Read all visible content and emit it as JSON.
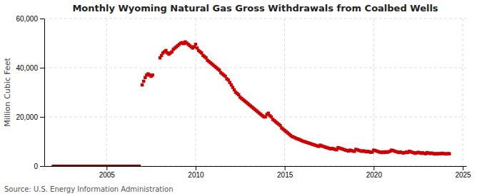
{
  "chart_data": {
    "type": "scatter",
    "title": "Monthly Wyoming Natural Gas Gross Withdrawals from Coalbed Wells",
    "ylabel": "Million Cubic Feet",
    "annotations": [
      "Source: U.S. Energy Information Administration"
    ],
    "xlim": [
      2001.5,
      2025.2
    ],
    "xticks": [
      2005,
      2010,
      2015,
      2020,
      2025
    ],
    "ylim": [
      0,
      60000
    ],
    "yticks": [
      0,
      {
        "value": 20000,
        "label": "20,000"
      },
      {
        "value": 40000,
        "label": "40,000"
      },
      {
        "value": 60000,
        "label": "60,000"
      }
    ],
    "grid": true,
    "series": [
      {
        "type": "line",
        "color": "#8B0000",
        "x": [
          2001.917,
          2006.917
        ],
        "values": [
          0,
          0
        ]
      },
      {
        "type": "scatter",
        "marker": "square",
        "color": "#CC0000",
        "x": [
          2007.0,
          2007.083,
          2007.167,
          2007.25,
          2007.333,
          2007.417,
          2007.5,
          2007.583,
          2008.0,
          2008.083,
          2008.167,
          2008.25,
          2008.333,
          2008.417,
          2008.5,
          2008.583,
          2008.667,
          2008.75,
          2008.833,
          2008.917,
          2009.0,
          2009.083,
          2009.167,
          2009.25,
          2009.333,
          2009.417,
          2009.5,
          2009.583,
          2009.667,
          2009.75,
          2009.833,
          2009.917,
          2010.0,
          2010.083,
          2010.167,
          2010.25,
          2010.333,
          2010.417,
          2010.5,
          2010.583,
          2010.667,
          2010.75,
          2010.833,
          2010.917,
          2011.0,
          2011.083,
          2011.167,
          2011.25,
          2011.333,
          2011.417,
          2011.5,
          2011.583,
          2011.667,
          2011.75,
          2011.833,
          2011.917,
          2012.0,
          2012.083,
          2012.167,
          2012.25,
          2012.333,
          2012.417,
          2012.5,
          2012.583,
          2012.667,
          2012.75,
          2012.833,
          2012.917,
          2013.0,
          2013.083,
          2013.167,
          2013.25,
          2013.333,
          2013.417,
          2013.5,
          2013.583,
          2013.667,
          2013.75,
          2013.833,
          2013.917,
          2014.0,
          2014.083,
          2014.167,
          2014.25,
          2014.333,
          2014.417,
          2014.5,
          2014.583,
          2014.667,
          2014.75,
          2014.833,
          2014.917,
          2015.0,
          2015.083,
          2015.167,
          2015.25,
          2015.333,
          2015.417,
          2015.5,
          2015.583,
          2015.667,
          2015.75,
          2015.833,
          2015.917,
          2016.0,
          2016.083,
          2016.167,
          2016.25,
          2016.333,
          2016.417,
          2016.5,
          2016.583,
          2016.667,
          2016.75,
          2016.833,
          2016.917,
          2017.0,
          2017.083,
          2017.167,
          2017.25,
          2017.333,
          2017.417,
          2017.5,
          2017.583,
          2017.667,
          2017.75,
          2017.833,
          2017.917,
          2018.0,
          2018.083,
          2018.167,
          2018.25,
          2018.333,
          2018.417,
          2018.5,
          2018.583,
          2018.667,
          2018.75,
          2018.833,
          2018.917,
          2019.0,
          2019.083,
          2019.167,
          2019.25,
          2019.333,
          2019.417,
          2019.5,
          2019.583,
          2019.667,
          2019.75,
          2019.833,
          2019.917,
          2020.0,
          2020.083,
          2020.167,
          2020.25,
          2020.333,
          2020.417,
          2020.5,
          2020.583,
          2020.667,
          2020.75,
          2020.833,
          2020.917,
          2021.0,
          2021.083,
          2021.167,
          2021.25,
          2021.333,
          2021.417,
          2021.5,
          2021.583,
          2021.667,
          2021.75,
          2021.833,
          2021.917,
          2022.0,
          2022.083,
          2022.167,
          2022.25,
          2022.333,
          2022.417,
          2022.5,
          2022.583,
          2022.667,
          2022.75,
          2022.833,
          2022.917,
          2023.0,
          2023.083,
          2023.167,
          2023.25,
          2023.333,
          2023.417,
          2023.5,
          2023.583,
          2023.667,
          2023.75,
          2023.833,
          2023.917,
          2024.0,
          2024.083,
          2024.167,
          2024.25
        ],
        "values": [
          33000,
          34500,
          36000,
          37000,
          37500,
          37000,
          36500,
          37000,
          44000,
          45000,
          46000,
          46500,
          47000,
          46000,
          45500,
          46000,
          46500,
          47500,
          48000,
          48500,
          49000,
          49500,
          50000,
          50200,
          49800,
          50500,
          50000,
          49500,
          49000,
          48500,
          48000,
          48500,
          49500,
          48000,
          47000,
          46500,
          46000,
          45000,
          44500,
          44000,
          43000,
          42500,
          42000,
          41500,
          41000,
          40500,
          40000,
          39500,
          39000,
          38000,
          37500,
          37000,
          36500,
          35500,
          35000,
          34000,
          33000,
          32000,
          31000,
          30000,
          29500,
          29000,
          28000,
          27500,
          27000,
          26500,
          26000,
          25500,
          25000,
          24500,
          24000,
          23500,
          23000,
          22500,
          22000,
          21500,
          21000,
          20500,
          20000,
          20000,
          21000,
          21500,
          20500,
          20000,
          19000,
          18500,
          18000,
          17500,
          17000,
          16500,
          15500,
          15000,
          14500,
          14000,
          13500,
          13000,
          12500,
          12000,
          11800,
          11500,
          11200,
          11000,
          10800,
          10500,
          10200,
          10000,
          9800,
          9600,
          9400,
          9200,
          9000,
          8800,
          8600,
          8400,
          8200,
          8000,
          8500,
          8200,
          8000,
          7800,
          7600,
          7400,
          7200,
          7000,
          7200,
          7000,
          6800,
          6600,
          7500,
          7300,
          7100,
          6900,
          6700,
          6500,
          6300,
          6100,
          6500,
          6300,
          6100,
          6000,
          6800,
          6600,
          6400,
          6200,
          6000,
          6200,
          6000,
          5800,
          6000,
          5800,
          5600,
          5700,
          6500,
          6300,
          6100,
          5900,
          5700,
          5500,
          5700,
          5500,
          5800,
          5600,
          5800,
          6000,
          6500,
          6300,
          6100,
          5900,
          5700,
          5500,
          5700,
          5500,
          5300,
          5500,
          5700,
          5500,
          6000,
          5800,
          5600,
          5400,
          5200,
          5400,
          5600,
          5400,
          5200,
          5400,
          5200,
          5000,
          5500,
          5300,
          5100,
          5300,
          5100,
          4900,
          5100,
          4900,
          5100,
          5000,
          5200,
          5100,
          5000,
          4900,
          5100,
          5000
        ]
      }
    ]
  }
}
